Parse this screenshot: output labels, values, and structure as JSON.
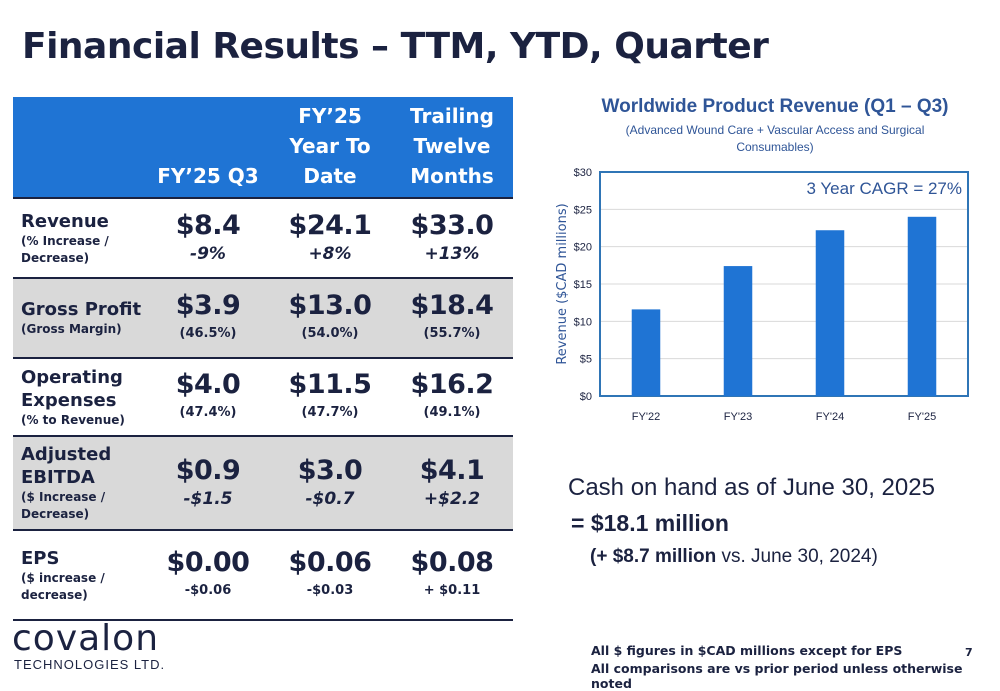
{
  "title": "Financial Results – TTM, YTD, Quarter",
  "table": {
    "headers": [
      "FY’25 Q3",
      "FY’25\nYear To\nDate",
      "Trailing\nTwelve\nMonths"
    ],
    "rows": [
      {
        "label": "Revenue",
        "sublabel": "(% Increase / Decrease)",
        "values": [
          "$8.4",
          "$24.1",
          "$33.0"
        ],
        "changes": [
          "-9%",
          "+8%",
          "+13%"
        ],
        "shaded": false
      },
      {
        "label": "Gross Profit",
        "sublabel": "(Gross Margin)",
        "values": [
          "$3.9",
          "$13.0",
          "$18.4"
        ],
        "changes": [
          "(46.5%)",
          "(54.0%)",
          "(55.7%)"
        ],
        "shaded": true
      },
      {
        "label": "Operating Expenses",
        "sublabel": "(% to Revenue)",
        "values": [
          "$4.0",
          "$11.5",
          "$16.2"
        ],
        "changes": [
          "(47.4%)",
          "(47.7%)",
          "(49.1%)"
        ],
        "shaded": false
      },
      {
        "label": "Adjusted EBITDA",
        "sublabel": "($ Increase / Decrease)",
        "values": [
          "$0.9",
          "$3.0",
          "$4.1"
        ],
        "changes": [
          "-$1.5",
          "-$0.7",
          "+$2.2"
        ],
        "shaded": true
      },
      {
        "label": "EPS",
        "sublabel": "($ increase / decrease)",
        "values": [
          "$0.00",
          "$0.06",
          "$0.08"
        ],
        "changes": [
          "-$0.06",
          "-$0.03",
          "+ $0.11"
        ],
        "shaded": false
      }
    ]
  },
  "chart_data": {
    "type": "bar",
    "title": "Worldwide Product Revenue (Q1 – Q3)",
    "subtitle": "(Advanced Wound Care + Vascular Access and Surgical Consumables)",
    "ylabel": "Revenue ($CAD millions)",
    "xlabel": "",
    "categories": [
      "FY'22",
      "FY'23",
      "FY'24",
      "FY'25"
    ],
    "values": [
      11.6,
      17.4,
      22.2,
      24.0
    ],
    "ylim": [
      0,
      30
    ],
    "yticks": [
      0,
      5,
      10,
      15,
      20,
      25,
      30
    ],
    "ytick_labels": [
      "$0",
      "$5",
      "$10",
      "$15",
      "$20",
      "$25",
      "$30"
    ],
    "annotation": "3 Year CAGR = 27%",
    "grid": true,
    "bar_color": "#1f74d4"
  },
  "cash": {
    "line1": "Cash on hand as of June 30, 2025",
    "line2": "= $18.1 million",
    "line3_bold": "(+ $8.7 million",
    "line3_rest": " vs. June 30, 2024)"
  },
  "logo": {
    "name": "covalon",
    "sub": "TECHNOLOGIES LTD."
  },
  "footnotes": [
    "All $ figures in $CAD millions except for EPS",
    "All comparisons are vs prior period unless otherwise noted"
  ],
  "page_number": "7",
  "colors": {
    "navy": "#1b2240",
    "blue": "#1f74d4",
    "chart_blue": "#2f5597",
    "grey": "#d9d9d9"
  }
}
